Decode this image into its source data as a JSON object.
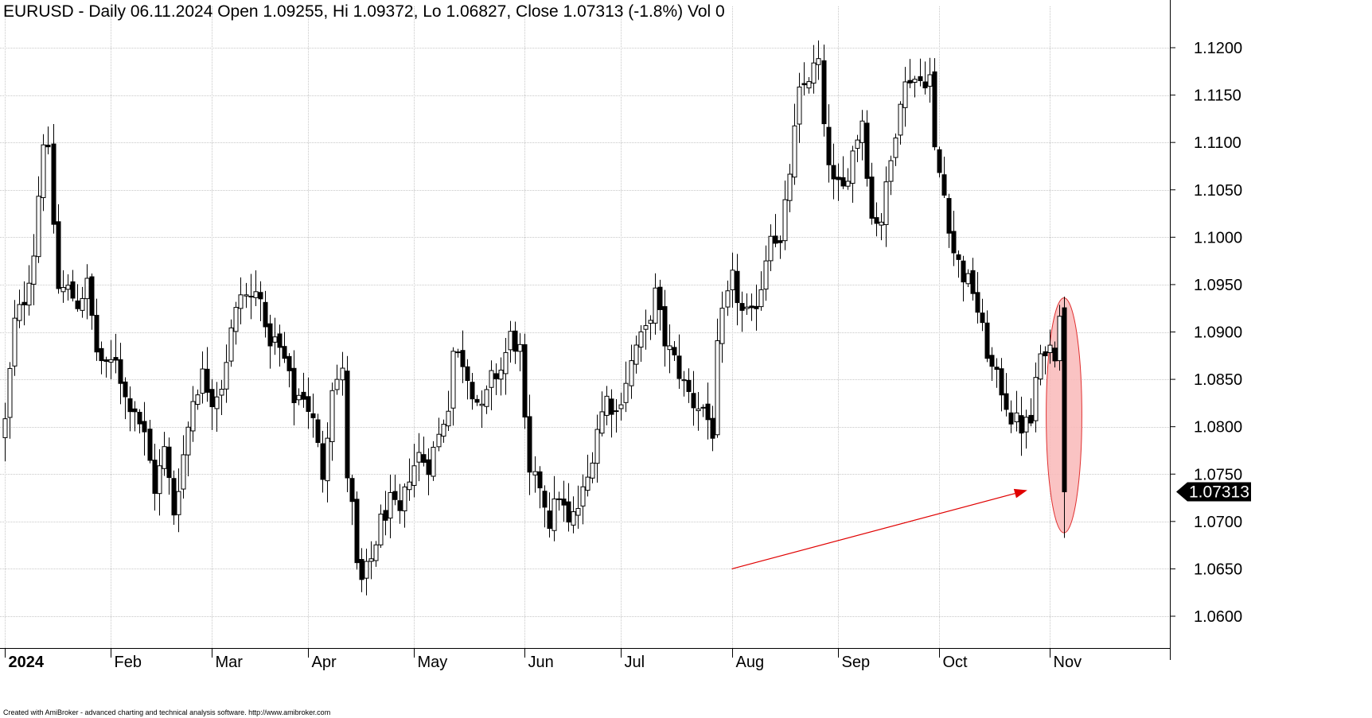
{
  "chart_data": {
    "type": "candlestick",
    "title": "EURUSD - Daily 06.11.2024 Open 1.09255, Hi 1.09372, Lo 1.06827, Close 1.07313 (-1.8%) Vol 0",
    "symbol": "EURUSD",
    "period": "Daily",
    "ylim": [
      1.0594,
      1.1222
    ],
    "y_ticks": [
      "1.1200",
      "1.1150",
      "1.1100",
      "1.1050",
      "1.1000",
      "1.0950",
      "1.0900",
      "1.0850",
      "1.0800",
      "1.0750",
      "1.0700",
      "1.0650",
      "1.0600"
    ],
    "x_ticks": [
      {
        "label": "2024",
        "index": 0,
        "bold": true
      },
      {
        "label": "Feb",
        "index": 22
      },
      {
        "label": "Mar",
        "index": 43
      },
      {
        "label": "Apr",
        "index": 63
      },
      {
        "label": "May",
        "index": 85
      },
      {
        "label": "Jun",
        "index": 108
      },
      {
        "label": "Jul",
        "index": 128
      },
      {
        "label": "Aug",
        "index": 151
      },
      {
        "label": "Sep",
        "index": 173
      },
      {
        "label": "Oct",
        "index": 194
      },
      {
        "label": "Nov",
        "index": 217
      }
    ],
    "grid": true,
    "last_price": "1.07313",
    "last_candle": {
      "open": 1.09255,
      "high": 1.09372,
      "low": 1.06827,
      "close": 1.07313,
      "change_pct": -1.8,
      "volume": 0
    },
    "colors": {
      "bull_body": "#ffffff",
      "bear_body": "#000000",
      "wick": "#000000",
      "grid": "#c8c8c8",
      "highlight_fill": "#f9b8b8",
      "highlight_stroke": "#e03030",
      "arrow": "#e00000",
      "price_tag": "#000000"
    },
    "annotations": [
      {
        "type": "arrow",
        "from": {
          "index": 151,
          "price": 1.065
        },
        "to": {
          "index": 217,
          "price": 1.0733
        }
      },
      {
        "type": "ellipse",
        "center": {
          "index": 220,
          "price": 1.0812
        },
        "rx_bars": 3.7,
        "ry_price": 0.0124
      }
    ],
    "series": [
      {
        "waypoints": [
          [
            0,
            1.0805
          ],
          [
            2,
            1.091
          ],
          [
            4,
            1.0935
          ],
          [
            6,
            1.0985
          ],
          [
            8,
            1.1105
          ],
          [
            9,
            1.1085
          ],
          [
            11,
            1.0945
          ],
          [
            13,
            1.0945
          ],
          [
            15,
            1.093
          ],
          [
            17,
            1.095
          ],
          [
            19,
            1.088
          ],
          [
            21,
            1.086
          ],
          [
            23,
            1.0875
          ],
          [
            25,
            1.083
          ],
          [
            27,
            1.082
          ],
          [
            29,
            1.079
          ],
          [
            31,
            1.0735
          ],
          [
            33,
            1.0775
          ],
          [
            35,
            1.071
          ],
          [
            37,
            1.077
          ],
          [
            39,
            1.083
          ],
          [
            41,
            1.0855
          ],
          [
            43,
            1.083
          ],
          [
            45,
            1.0845
          ],
          [
            47,
            1.09
          ],
          [
            49,
            1.094
          ],
          [
            51,
            1.0935
          ],
          [
            53,
            1.0945
          ],
          [
            54,
            1.0895
          ],
          [
            56,
            1.089
          ],
          [
            58,
            1.087
          ],
          [
            60,
            1.083
          ],
          [
            62,
            1.0835
          ],
          [
            64,
            1.0805
          ],
          [
            66,
            1.075
          ],
          [
            68,
            1.0845
          ],
          [
            70,
            1.0855
          ],
          [
            71,
            1.075
          ],
          [
            72,
            1.0715
          ],
          [
            73,
            1.065
          ],
          [
            74,
            1.0635
          ],
          [
            76,
            1.066
          ],
          [
            78,
            1.07
          ],
          [
            80,
            1.072
          ],
          [
            82,
            1.0705
          ],
          [
            84,
            1.075
          ],
          [
            86,
            1.077
          ],
          [
            88,
            1.076
          ],
          [
            90,
            1.079
          ],
          [
            92,
            1.0825
          ],
          [
            93,
            1.088
          ],
          [
            95,
            1.087
          ],
          [
            97,
            1.084
          ],
          [
            99,
            1.0815
          ],
          [
            101,
            1.085
          ],
          [
            103,
            1.086
          ],
          [
            105,
            1.0895
          ],
          [
            107,
            1.088
          ],
          [
            108,
            1.08
          ],
          [
            109,
            1.0745
          ],
          [
            111,
            1.074
          ],
          [
            113,
            1.07
          ],
          [
            115,
            1.073
          ],
          [
            117,
            1.0695
          ],
          [
            119,
            1.0715
          ],
          [
            121,
            1.0745
          ],
          [
            123,
            1.08
          ],
          [
            125,
            1.083
          ],
          [
            127,
            1.0815
          ],
          [
            129,
            1.085
          ],
          [
            131,
            1.0885
          ],
          [
            133,
            1.09
          ],
          [
            135,
            1.094
          ],
          [
            137,
            1.089
          ],
          [
            139,
            1.087
          ],
          [
            141,
            1.0845
          ],
          [
            143,
            1.0825
          ],
          [
            145,
            1.082
          ],
          [
            147,
            1.0795
          ],
          [
            148,
            1.088
          ],
          [
            149,
            1.0915
          ],
          [
            151,
            1.0955
          ],
          [
            153,
            1.092
          ],
          [
            155,
            1.0915
          ],
          [
            157,
            1.095
          ],
          [
            159,
            1.101
          ],
          [
            161,
            1.099
          ],
          [
            163,
            1.107
          ],
          [
            165,
            1.115
          ],
          [
            167,
            1.117
          ],
          [
            169,
            1.1185
          ],
          [
            170,
            1.111
          ],
          [
            172,
            1.1055
          ],
          [
            174,
            1.105
          ],
          [
            176,
            1.109
          ],
          [
            178,
            1.1125
          ],
          [
            180,
            1.102
          ],
          [
            182,
            1.102
          ],
          [
            184,
            1.108
          ],
          [
            186,
            1.115
          ],
          [
            188,
            1.117
          ],
          [
            190,
            1.1165
          ],
          [
            192,
            1.117
          ],
          [
            193,
            1.109
          ],
          [
            195,
            1.1045
          ],
          [
            197,
            1.0985
          ],
          [
            199,
            1.096
          ],
          [
            201,
            1.0945
          ],
          [
            203,
            1.09
          ],
          [
            205,
            1.086
          ],
          [
            207,
            1.084
          ],
          [
            209,
            1.081
          ],
          [
            211,
            1.08
          ],
          [
            213,
            1.0805
          ],
          [
            214,
            1.085
          ],
          [
            216,
            1.0885
          ],
          [
            218,
            1.088
          ],
          [
            219,
            1.0925
          ]
        ]
      }
    ]
  },
  "footer": {
    "credit": "Created with AmiBroker - advanced charting and technical analysis software. http://www.amibroker.com"
  }
}
